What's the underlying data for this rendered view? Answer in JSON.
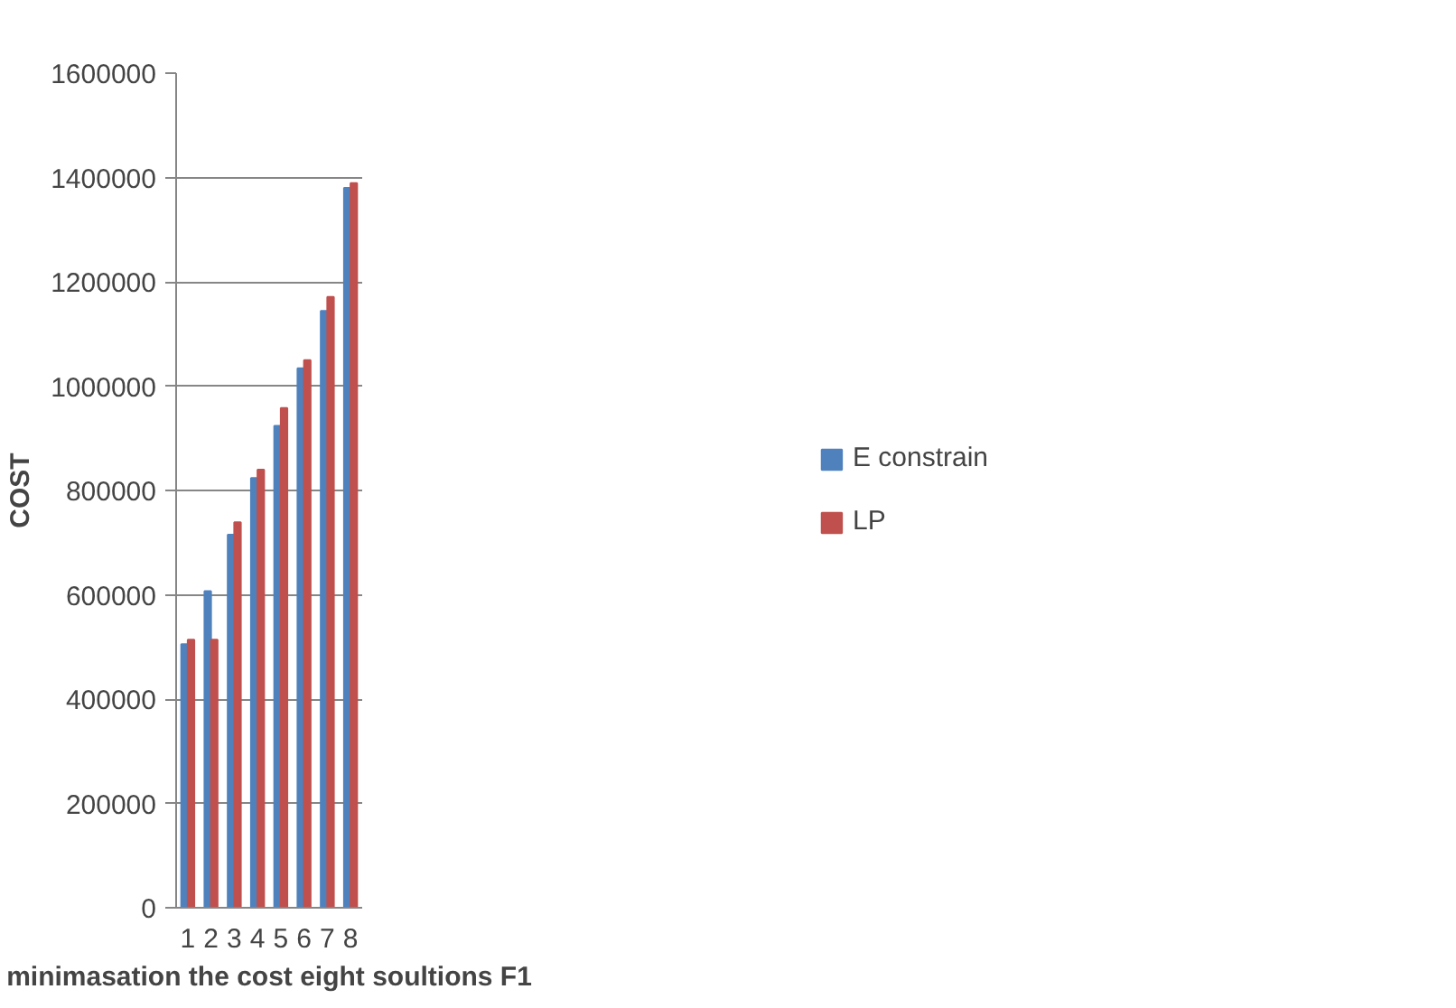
{
  "chart_data": {
    "type": "bar",
    "xlabel": "minimasation the cost eight soultions F1",
    "ylabel": "COST",
    "categories": [
      "1",
      "2",
      "3",
      "4",
      "5",
      "6",
      "7",
      "8"
    ],
    "series": [
      {
        "name": "E constrain",
        "color": "#4f81bd",
        "values": [
          505000,
          607000,
          715000,
          824000,
          924000,
          1034000,
          1144000,
          1380000
        ]
      },
      {
        "name": "LP",
        "color": "#c0504d",
        "values": [
          514000,
          514000,
          739000,
          840000,
          958000,
          1050000,
          1171000,
          1389000
        ]
      }
    ],
    "ylim": [
      0,
      1600000
    ],
    "yticks": [
      0,
      200000,
      400000,
      600000,
      800000,
      1000000,
      1200000,
      1400000,
      1600000
    ],
    "grid": "y",
    "legend": "right"
  }
}
